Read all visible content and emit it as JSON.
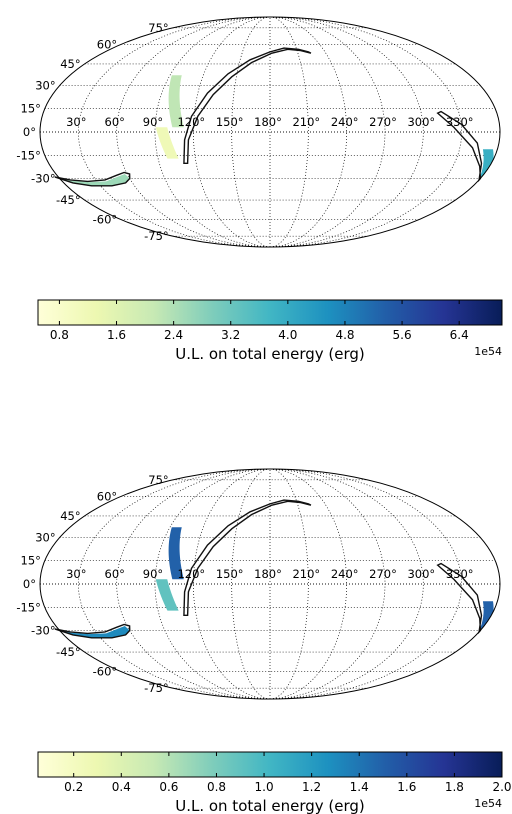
{
  "chart_data": [
    {
      "type": "heatmap",
      "projection": "mollweide",
      "grid": true,
      "lat_ticks": [
        75,
        60,
        45,
        30,
        15,
        0,
        -15,
        -30,
        -45,
        -60,
        -75
      ],
      "lat_tick_labels": [
        "75°",
        "60°",
        "45°",
        "30°",
        "15°",
        "0°",
        "-15°",
        "-30°",
        "-45°",
        "-60°",
        "-75°"
      ],
      "lon_ticks": [
        30,
        60,
        90,
        120,
        150,
        180,
        210,
        240,
        270,
        300,
        330
      ],
      "lon_tick_labels": [
        "30°",
        "60°",
        "90°",
        "120°",
        "150°",
        "180°",
        "210°",
        "240°",
        "270°",
        "300°",
        "330°"
      ],
      "colorbar": {
        "label": "U.L. on total energy (erg)",
        "offset_label": "1e54",
        "range": [
          0.5,
          7.0
        ],
        "ticks": [
          0.8,
          1.6,
          2.4,
          3.2,
          4.0,
          4.8,
          5.6,
          6.4
        ],
        "tick_labels": [
          "0.8",
          "1.6",
          "2.4",
          "3.2",
          "4.0",
          "4.8",
          "5.6",
          "6.4"
        ],
        "colormap": "YlGnBu",
        "placement": "bottom"
      },
      "filled_regions": [
        {
          "lon_center": 108,
          "lat_from": 37,
          "lat_to": 3,
          "value": 2.2
        },
        {
          "lon_center": 102,
          "lat_from": 3,
          "lat_to": -17,
          "value": 1.2
        },
        {
          "lon_center": 20,
          "lat_from": -31,
          "lat_to": -37,
          "value": 2.6
        },
        {
          "lon_center": 352,
          "lat_from": -11,
          "lat_to": -30,
          "value": 3.9
        }
      ]
    },
    {
      "type": "heatmap",
      "projection": "mollweide",
      "grid": true,
      "lat_ticks": [
        75,
        60,
        45,
        30,
        15,
        0,
        -15,
        -30,
        -45,
        -60,
        -75
      ],
      "lat_tick_labels": [
        "75°",
        "60°",
        "45°",
        "30°",
        "15°",
        "0°",
        "-15°",
        "-30°",
        "-45°",
        "-60°",
        "-75°"
      ],
      "lon_ticks": [
        30,
        60,
        90,
        120,
        150,
        180,
        210,
        240,
        270,
        300,
        330
      ],
      "lon_tick_labels": [
        "30°",
        "60°",
        "90°",
        "120°",
        "150°",
        "180°",
        "210°",
        "240°",
        "270°",
        "300°",
        "330°"
      ],
      "colorbar": {
        "label": "U.L. on total energy (erg)",
        "offset_label": "1e54",
        "range": [
          0.05,
          2.0
        ],
        "ticks": [
          0.2,
          0.4,
          0.6,
          0.8,
          1.0,
          1.2,
          1.4,
          1.6,
          1.8,
          2.0
        ],
        "tick_labels": [
          "0.2",
          "0.4",
          "0.6",
          "0.8",
          "1.0",
          "1.2",
          "1.4",
          "1.6",
          "1.8",
          "2.0"
        ],
        "colormap": "YlGnBu",
        "placement": "bottom"
      },
      "filled_regions": [
        {
          "lon_center": 108,
          "lat_from": 37,
          "lat_to": 3,
          "value": 1.5
        },
        {
          "lon_center": 102,
          "lat_from": 3,
          "lat_to": -17,
          "value": 0.9
        },
        {
          "lon_center": 20,
          "lat_from": -31,
          "lat_to": -37,
          "value": 1.3
        },
        {
          "lon_center": 352,
          "lat_from": -11,
          "lat_to": -30,
          "value": 1.5
        }
      ]
    }
  ]
}
